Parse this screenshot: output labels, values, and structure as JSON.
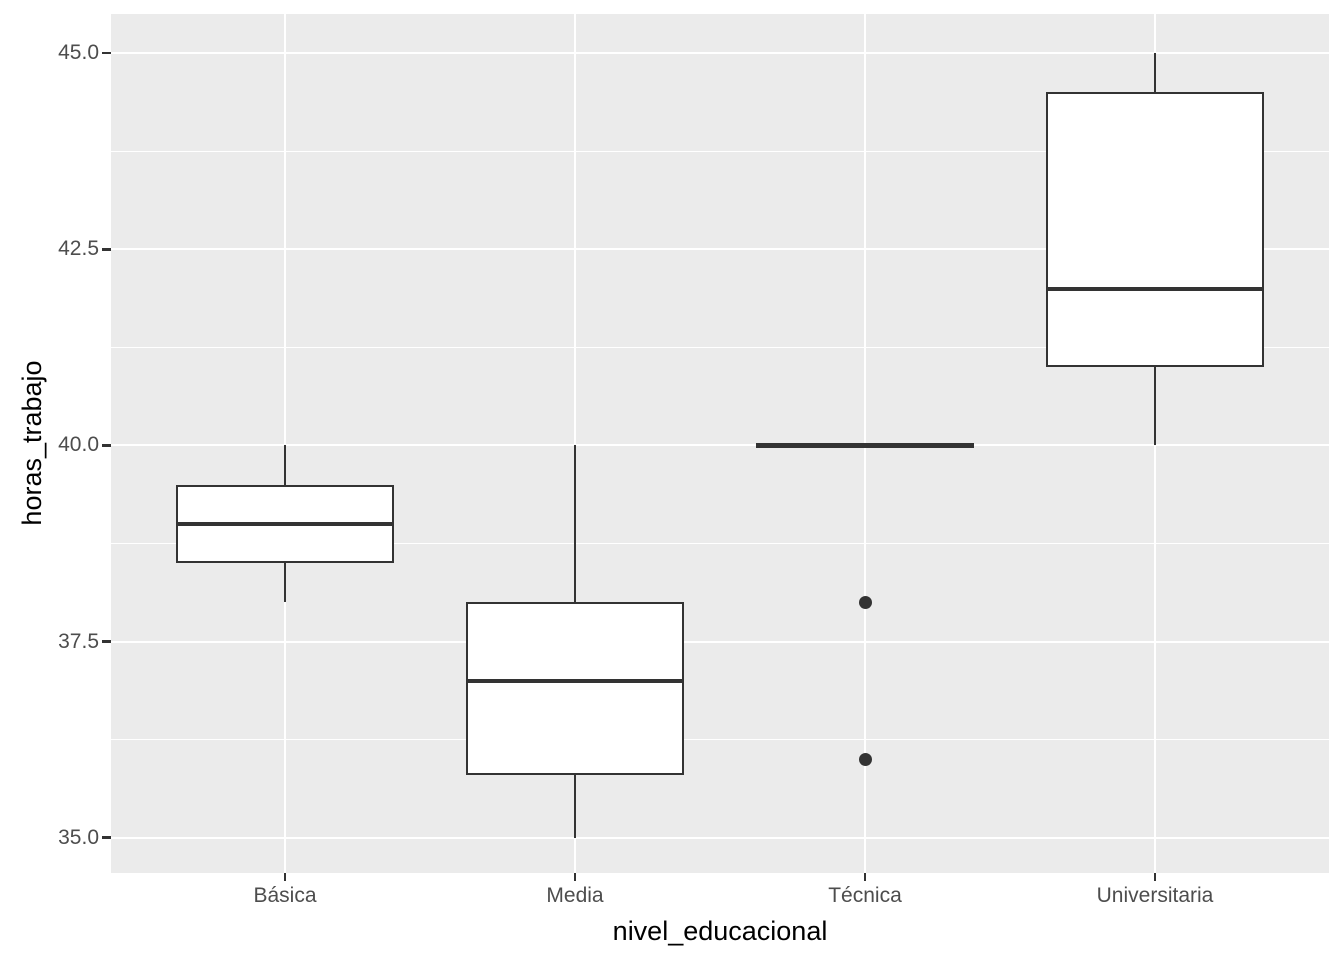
{
  "figure": {
    "panel_background": "#EBEBEB",
    "grid_color": "#FFFFFF",
    "box_stroke_color": "#333333",
    "box_fill_color": "#FFFFFF",
    "axis_text_color": "#4D4D4D",
    "axis_title_color": "#000000"
  },
  "chart_data": {
    "type": "boxplot",
    "title": "",
    "xlabel": "nivel_educacional",
    "ylabel": "horas_trabajo",
    "categories": [
      "Básica",
      "Media",
      "Técnica",
      "Universitaria"
    ],
    "series": [
      {
        "category": "Básica",
        "whisker_low": 38,
        "q1": 38.5,
        "median": 39,
        "q3": 39.5,
        "whisker_high": 40,
        "outliers": []
      },
      {
        "category": "Media",
        "whisker_low": 35,
        "q1": 35.8,
        "median": 37,
        "q3": 38,
        "whisker_high": 40,
        "outliers": []
      },
      {
        "category": "Técnica",
        "whisker_low": 40,
        "q1": 40,
        "median": 40,
        "q3": 40,
        "whisker_high": 40,
        "outliers": [
          38,
          36
        ]
      },
      {
        "category": "Universitaria",
        "whisker_low": 40,
        "q1": 41,
        "median": 42,
        "q3": 44.5,
        "whisker_high": 45,
        "outliers": []
      }
    ],
    "y_ticks": [
      {
        "value": 35.0,
        "label": "35.0"
      },
      {
        "value": 37.5,
        "label": "37.5"
      },
      {
        "value": 40.0,
        "label": "40.0"
      },
      {
        "value": 42.5,
        "label": "42.5"
      },
      {
        "value": 45.0,
        "label": "45.0"
      }
    ],
    "y_minor_ticks": [
      36.25,
      38.75,
      41.25,
      43.75
    ],
    "ylim": [
      34.55,
      45.5
    ],
    "grid": true,
    "legend": false
  }
}
